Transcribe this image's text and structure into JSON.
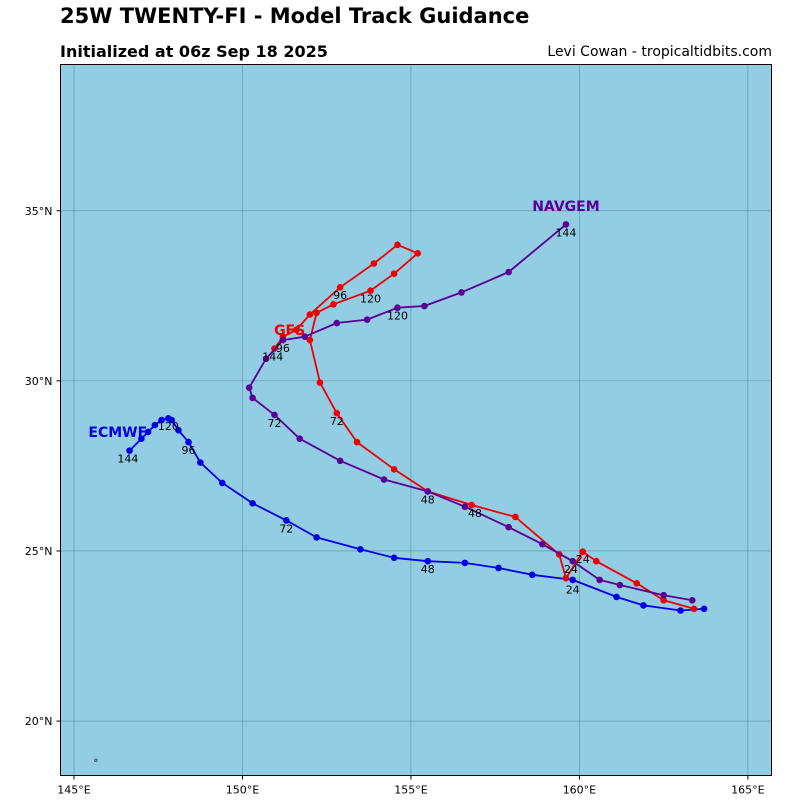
{
  "header": {
    "title": "25W TWENTY-FI - Model Track Guidance",
    "subtitle": "Initialized at 06z Sep 18 2025",
    "credit": "Levi Cowan - tropicaltidbits.com"
  },
  "colors": {
    "ocean": "#92cde3",
    "grid": "#4a7f8f",
    "frame": "#000000"
  },
  "chart_data": {
    "type": "line",
    "xlim": [
      144.6,
      165.7
    ],
    "ylim": [
      18.4,
      39.3
    ],
    "x_ticks": [
      {
        "value": 145,
        "label": "145°E"
      },
      {
        "value": 150,
        "label": "150°E"
      },
      {
        "value": 155,
        "label": "155°E"
      },
      {
        "value": 160,
        "label": "160°E"
      },
      {
        "value": 165,
        "label": "165°E"
      }
    ],
    "y_ticks": [
      {
        "value": 20,
        "label": "20°N"
      },
      {
        "value": 25,
        "label": "25°N"
      },
      {
        "value": 30,
        "label": "30°N"
      },
      {
        "value": 35,
        "label": "35°N"
      }
    ],
    "grid": true,
    "series": [
      {
        "name": "ECMWF",
        "color": "#0000e6",
        "label_pos": {
          "lon": 146.3,
          "lat": 28.35
        },
        "points": [
          [
            163.7,
            23.3
          ],
          [
            163.0,
            23.25
          ],
          [
            161.9,
            23.4
          ],
          [
            161.1,
            23.65
          ],
          [
            159.8,
            24.15
          ],
          [
            158.6,
            24.3
          ],
          [
            157.6,
            24.5
          ],
          [
            156.6,
            24.65
          ],
          [
            155.5,
            24.7
          ],
          [
            154.5,
            24.8
          ],
          [
            153.5,
            25.05
          ],
          [
            152.2,
            25.4
          ],
          [
            151.3,
            25.9
          ],
          [
            150.3,
            26.4
          ],
          [
            149.4,
            27.0
          ],
          [
            148.75,
            27.6
          ],
          [
            148.4,
            28.2
          ],
          [
            148.1,
            28.55
          ],
          [
            147.9,
            28.85
          ],
          [
            147.8,
            28.9
          ],
          [
            147.6,
            28.85
          ],
          [
            147.4,
            28.7
          ],
          [
            147.2,
            28.5
          ],
          [
            147.0,
            28.3
          ],
          [
            146.65,
            27.95
          ]
        ],
        "hour_labels": [
          {
            "text": "24",
            "lon": 159.8,
            "lat": 23.75
          },
          {
            "text": "48",
            "lon": 155.5,
            "lat": 24.35
          },
          {
            "text": "72",
            "lon": 151.3,
            "lat": 25.55
          },
          {
            "text": "96",
            "lon": 148.4,
            "lat": 27.85
          },
          {
            "text": "120",
            "lon": 147.8,
            "lat": 28.55
          },
          {
            "text": "144",
            "lon": 146.6,
            "lat": 27.6
          }
        ]
      },
      {
        "name": "GFS",
        "color": "#ee0000",
        "label_pos": {
          "lon": 151.4,
          "lat": 31.35
        },
        "points": [
          [
            163.4,
            23.3
          ],
          [
            162.5,
            23.55
          ],
          [
            161.7,
            24.05
          ],
          [
            160.5,
            24.7
          ],
          [
            160.1,
            24.98
          ],
          [
            159.6,
            24.2
          ],
          [
            159.4,
            24.9
          ],
          [
            158.1,
            26.0
          ],
          [
            156.8,
            26.35
          ],
          [
            155.5,
            26.75
          ],
          [
            154.5,
            27.4
          ],
          [
            153.4,
            28.2
          ],
          [
            152.8,
            29.05
          ],
          [
            152.3,
            29.95
          ],
          [
            152.0,
            31.2
          ],
          [
            152.2,
            32.0
          ],
          [
            152.7,
            32.25
          ],
          [
            153.8,
            32.65
          ],
          [
            154.5,
            33.15
          ],
          [
            155.2,
            33.75
          ],
          [
            154.6,
            34.0
          ],
          [
            153.9,
            33.45
          ],
          [
            152.9,
            32.75
          ],
          [
            152.0,
            31.95
          ],
          [
            151.6,
            31.5
          ],
          [
            151.2,
            31.3
          ],
          [
            150.95,
            30.95
          ]
        ],
        "hour_labels": [
          {
            "text": "24",
            "lon": 160.1,
            "lat": 24.65
          },
          {
            "text": "48",
            "lon": 156.9,
            "lat": 26.0
          },
          {
            "text": "72",
            "lon": 152.8,
            "lat": 28.7
          },
          {
            "text": "96",
            "lon": 152.9,
            "lat": 32.4
          },
          {
            "text": "120",
            "lon": 153.8,
            "lat": 32.3
          }
        ]
      },
      {
        "name": "NAVGEM",
        "color": "#5a0096",
        "label_pos": {
          "lon": 159.6,
          "lat": 35.0
        },
        "points": [
          [
            163.35,
            23.55
          ],
          [
            162.5,
            23.7
          ],
          [
            161.2,
            24.0
          ],
          [
            160.6,
            24.15
          ],
          [
            159.8,
            24.7
          ],
          [
            158.9,
            25.2
          ],
          [
            157.9,
            25.7
          ],
          [
            156.6,
            26.3
          ],
          [
            155.5,
            26.75
          ],
          [
            154.2,
            27.1
          ],
          [
            152.9,
            27.65
          ],
          [
            151.7,
            28.3
          ],
          [
            150.95,
            29.0
          ],
          [
            150.3,
            29.5
          ],
          [
            150.2,
            29.8
          ],
          [
            150.7,
            30.65
          ],
          [
            151.2,
            31.2
          ],
          [
            151.85,
            31.3
          ],
          [
            152.8,
            31.7
          ],
          [
            153.7,
            31.8
          ],
          [
            154.6,
            32.15
          ],
          [
            155.4,
            32.2
          ],
          [
            156.5,
            32.6
          ],
          [
            157.9,
            33.2
          ],
          [
            159.6,
            34.6
          ]
        ],
        "hour_labels": [
          {
            "text": "24",
            "lon": 159.75,
            "lat": 24.35
          },
          {
            "text": "48",
            "lon": 155.5,
            "lat": 26.4
          },
          {
            "text": "72",
            "lon": 150.95,
            "lat": 28.65
          },
          {
            "text": "96",
            "lon": 151.2,
            "lat": 30.85
          },
          {
            "text": "120",
            "lon": 154.6,
            "lat": 31.8
          },
          {
            "text": "144",
            "lon": 159.6,
            "lat": 34.25
          }
        ]
      }
    ],
    "extra_labels": [
      {
        "text": "144",
        "lon": 150.9,
        "lat": 30.6,
        "color": "#000000"
      }
    ],
    "islands": [
      {
        "lon": 145.65,
        "lat": 18.85
      }
    ]
  }
}
